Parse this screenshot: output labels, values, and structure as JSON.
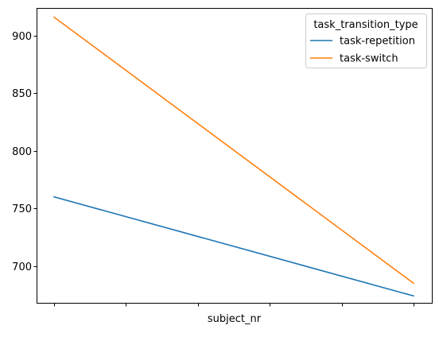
{
  "chart_data": {
    "type": "line",
    "title": "",
    "xlabel": "subject_nr",
    "ylabel": "",
    "x_tick_count": 6,
    "x_ticks_labeled": false,
    "y_ticks": [
      700,
      750,
      800,
      850,
      900
    ],
    "y_tick_labels": [
      "700",
      "750",
      "800",
      "850",
      "900"
    ],
    "ylim": [
      668,
      924
    ],
    "grid": false,
    "legend": {
      "title": "task_transition_type",
      "placement": "top-right"
    },
    "series": [
      {
        "name": "task-repetition",
        "color": "#1f77b4",
        "values": [
          760,
          674
        ]
      },
      {
        "name": "task-switch",
        "color": "#ff7f0e",
        "values": [
          916,
          685
        ]
      }
    ]
  }
}
